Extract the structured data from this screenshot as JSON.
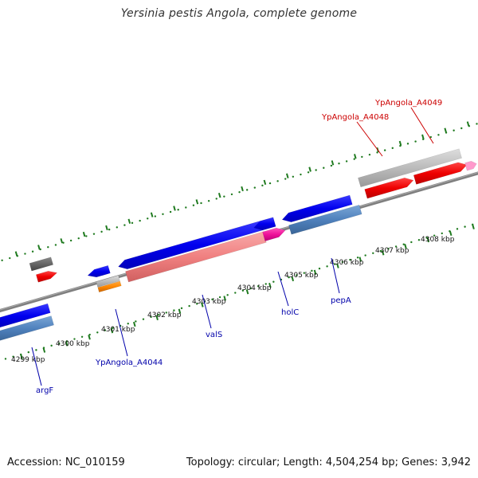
{
  "title": "Yersinia pestis Angola, complete genome",
  "footer": {
    "accession": "Accession: NC_010159",
    "summary": "Topology: circular; Length: 4,504,254 bp; Genes: 3,942"
  },
  "colors": {
    "background": "#ffffff",
    "backbone": "#7f7f7f",
    "tick_green": "#1f7a1f",
    "label_blue": "#0000aa",
    "label_red": "#cc0000",
    "gene_blue": "#0000ee",
    "gene_steelblue": "#4f81bd",
    "gene_red": "#ee0000",
    "gene_gray": "#bbbbbb",
    "gene_darkgray": "#666666",
    "gene_salmon": "#f08080",
    "gene_magenta": "#ee1199",
    "gene_orange": "#ff8800",
    "gene_pink": "#ff99cc"
  },
  "ticks": [
    {
      "label": "4299 kbp"
    },
    {
      "label": "4300 kbp"
    },
    {
      "label": "4301 kbp"
    },
    {
      "label": "4302 kbp"
    },
    {
      "label": "4303 kbp"
    },
    {
      "label": "4304 kbp"
    },
    {
      "label": "4305 kbp"
    },
    {
      "label": "4306 kbp"
    },
    {
      "label": "4307 kbp"
    },
    {
      "label": "4308 kbp"
    }
  ],
  "gene_labels": [
    {
      "text": "argF",
      "color": "blue"
    },
    {
      "text": "YpAngola_A4044",
      "color": "blue"
    },
    {
      "text": "valS",
      "color": "blue"
    },
    {
      "text": "holC",
      "color": "blue"
    },
    {
      "text": "pepA",
      "color": "blue"
    },
    {
      "text": "YpAngola_A4048",
      "color": "red"
    },
    {
      "text": "YpAngola_A4049",
      "color": "red"
    }
  ]
}
